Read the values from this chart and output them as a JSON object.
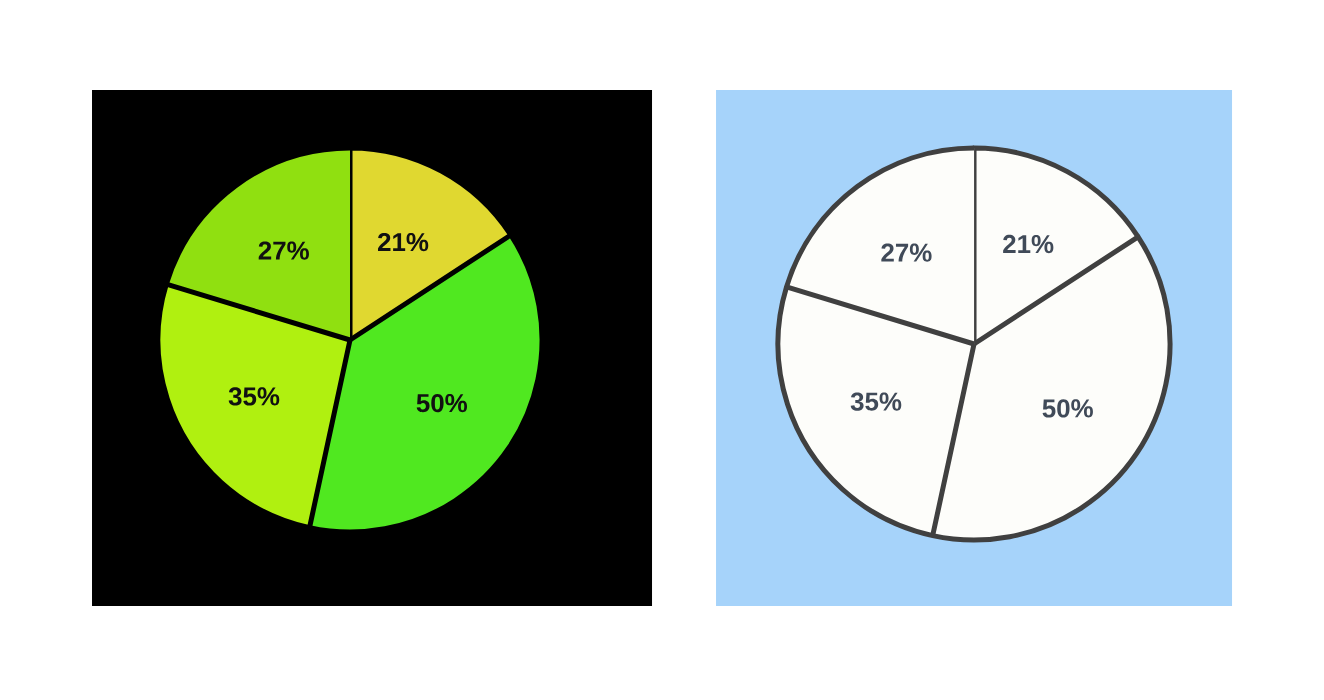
{
  "chart_data": [
    {
      "type": "pie",
      "categories": [
        null,
        null,
        null,
        null
      ],
      "values": [
        21,
        50,
        35,
        27
      ],
      "colors": [
        "#e0d830",
        "#50e820",
        "#b0f010",
        "#90e010"
      ],
      "value_labels": [
        "21%",
        "50%",
        "35%",
        "27%"
      ]
    },
    {
      "type": "pie",
      "categories": [
        null,
        null,
        null,
        null
      ],
      "values": [
        21,
        50,
        35,
        27
      ],
      "colors": [
        "#fdfdfa",
        "#fdfdfa",
        "#fdfdfa",
        "#fdfdfa"
      ],
      "value_labels": [
        "21%",
        "50%",
        "35%",
        "27%"
      ]
    }
  ]
}
